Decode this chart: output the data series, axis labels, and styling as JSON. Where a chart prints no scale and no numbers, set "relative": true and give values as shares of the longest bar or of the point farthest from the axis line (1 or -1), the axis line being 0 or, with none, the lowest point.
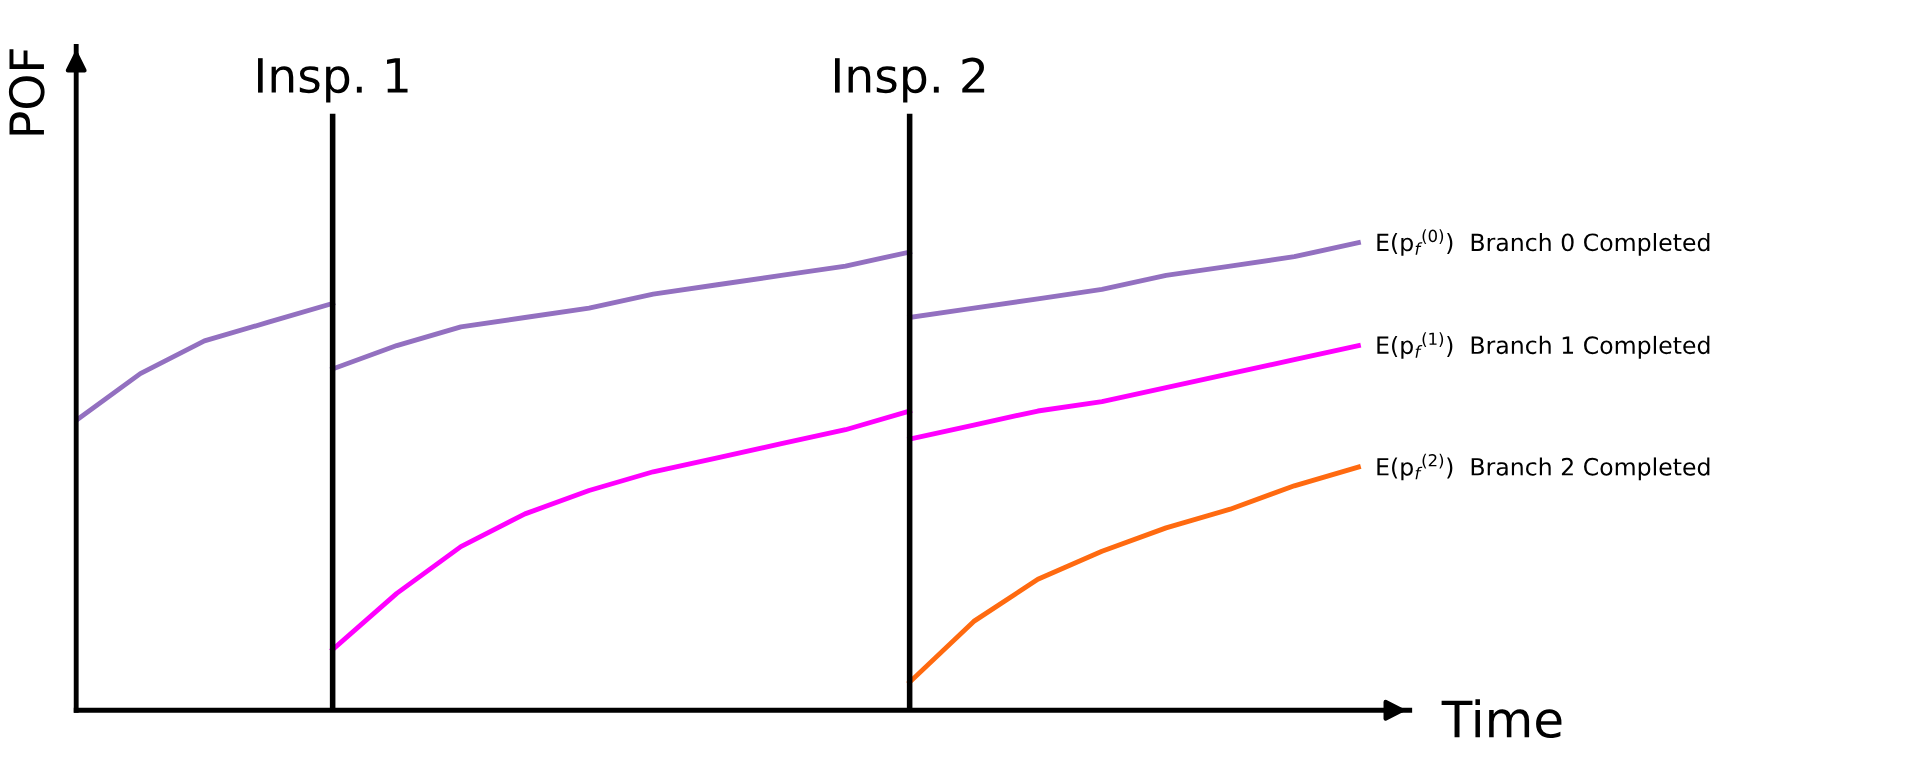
{
  "chart_data": {
    "type": "line",
    "relative": true,
    "xlabel": "Time",
    "ylabel": "POF",
    "categories": [
      null,
      null,
      null,
      null,
      null,
      null,
      null,
      null,
      null,
      null,
      null,
      null,
      null,
      null,
      null,
      null,
      null,
      null,
      null,
      null,
      null
    ],
    "series": [
      {
        "color": "#9370c0",
        "values": [
          0.62,
          0.72,
          0.79,
          0.83,
          0.87,
          null,
          null,
          null,
          null,
          null,
          null,
          null,
          null,
          null,
          null,
          null,
          null,
          null,
          null,
          null,
          null
        ]
      },
      {
        "color": "#9370c0",
        "values": [
          null,
          null,
          null,
          null,
          0.73,
          0.78,
          0.82,
          0.84,
          0.86,
          0.89,
          0.91,
          0.93,
          0.95,
          0.98,
          null,
          null,
          null,
          null,
          null,
          null,
          null
        ]
      },
      {
        "name": "E(p$_{f}$$^{(0)}$)  Branch 0 Completed",
        "color": "#9370c0",
        "values": [
          null,
          null,
          null,
          null,
          null,
          null,
          null,
          null,
          null,
          null,
          null,
          null,
          null,
          0.84,
          0.86,
          0.88,
          0.9,
          0.93,
          0.95,
          0.97,
          1.0
        ]
      },
      {
        "color": "#ff00ff",
        "values": [
          null,
          null,
          null,
          null,
          0.13,
          0.25,
          0.35,
          0.42,
          0.47,
          0.51,
          0.54,
          0.57,
          0.6,
          0.64,
          null,
          null,
          null,
          null,
          null,
          null,
          null
        ]
      },
      {
        "name": "E(p$_{f}$$^{(1)}$)  Branch 1 Completed",
        "color": "#ff00ff",
        "values": [
          null,
          null,
          null,
          null,
          null,
          null,
          null,
          null,
          null,
          null,
          null,
          null,
          null,
          0.58,
          0.61,
          0.64,
          0.66,
          0.69,
          0.72,
          0.75,
          0.78
        ]
      },
      {
        "name": "E(p$_{f}$$^{(2)}$)  Branch 2 Completed",
        "color": "#ff6a10",
        "values": [
          null,
          null,
          null,
          null,
          null,
          null,
          null,
          null,
          null,
          null,
          null,
          null,
          null,
          0.06,
          0.19,
          0.28,
          0.34,
          0.39,
          0.43,
          0.48,
          0.52
        ]
      }
    ],
    "annotations": [
      "Insp. 1",
      "Insp. 2"
    ],
    "legend": false,
    "marker": "none",
    "line_style": "solid",
    "tick_labels": false
  }
}
